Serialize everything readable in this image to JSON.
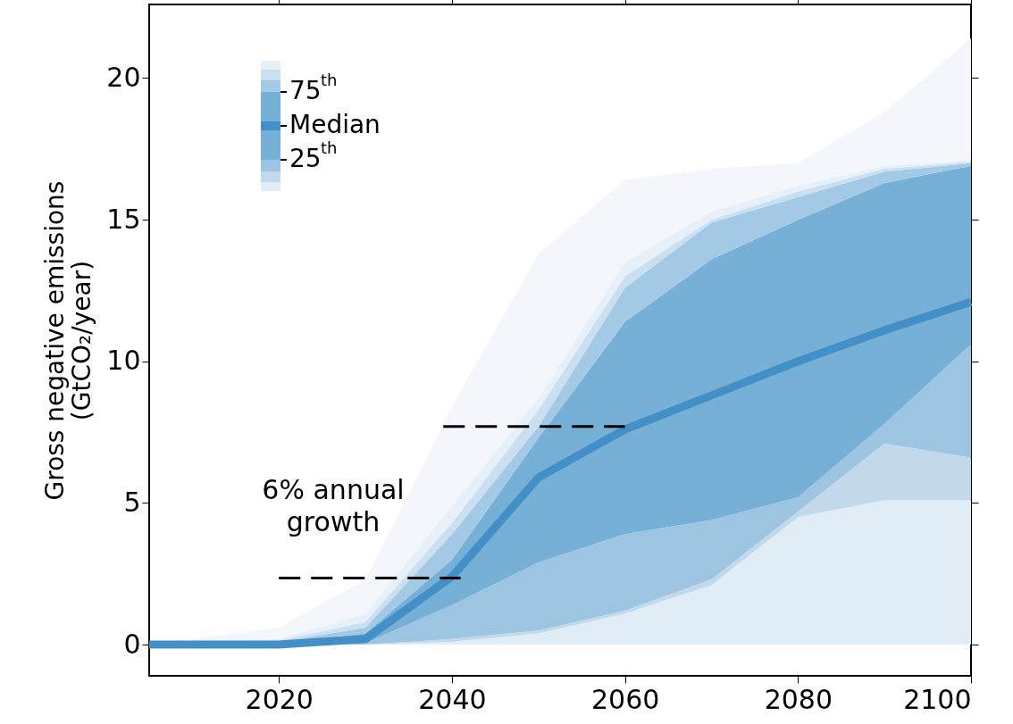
{
  "chart_data": {
    "type": "area",
    "stacked": true,
    "ylabel": "Gross negative emissions\n(GtCO₂/year)",
    "x": [
      2005,
      2020,
      2030,
      2040,
      2050,
      2060,
      2070,
      2080,
      2090,
      2100
    ],
    "xlim": [
      2005,
      2100
    ],
    "xticks": [
      2020,
      2040,
      2060,
      2080,
      2100
    ],
    "ylim": [
      -1.1,
      22.6
    ],
    "yticks": [
      0,
      5,
      10,
      15,
      20
    ],
    "grid": false,
    "legend": "top left",
    "series": [
      {
        "color": "#e0ecf6",
        "values": [
          0,
          0,
          0,
          0.1,
          0.4,
          1.1,
          2.1,
          4.5,
          5.1,
          5.1
        ]
      },
      {
        "color": "#c2d9ec",
        "values": [
          0,
          0,
          0,
          0.1,
          0.1,
          0.1,
          0.2,
          0.2,
          2.0,
          1.5
        ]
      },
      {
        "color": "#9dc5e2",
        "values": [
          0,
          0,
          0.05,
          1.2,
          2.4,
          2.7,
          2.1,
          0.5,
          0.7,
          4.0
        ]
      },
      {
        "color": "#76b0d6",
        "values": [
          0,
          0.05,
          0.35,
          1.6,
          4.4,
          7.5,
          9.2,
          9.8,
          8.5,
          6.3
        ]
      },
      {
        "color": "#a3c9e5",
        "values": [
          0,
          0.05,
          0.2,
          0.9,
          0.4,
          1.2,
          1.3,
          0.8,
          0.4,
          0.1
        ]
      },
      {
        "color": "#cadff0",
        "values": [
          0,
          0.05,
          0.2,
          0.4,
          0.6,
          0.4,
          0.1,
          0.2,
          0.1,
          0.05
        ]
      },
      {
        "color": "#e7f0f8",
        "values": [
          0,
          0.05,
          0.3,
          0.6,
          0.4,
          0.5,
          0.3,
          0.2,
          0.1,
          0.05
        ]
      },
      {
        "color": "#f3f7fb",
        "values": [
          0,
          0.4,
          1.2,
          3.5,
          5.1,
          2.9,
          1.5,
          0.8,
          1.9,
          4.3
        ]
      },
      {
        "type": "line",
        "name": "Median",
        "color": "#4390c8",
        "values": [
          0,
          0,
          0.2,
          2.4,
          5.9,
          7.6,
          8.8,
          10.0,
          11.1,
          12.1
        ]
      },
      {
        "type": "line",
        "color": "#000000",
        "line_style": "dashed",
        "x": [
          2020,
          2041
        ],
        "values": [
          2.35,
          2.35
        ]
      },
      {
        "type": "line",
        "color": "#000000",
        "line_style": "dashed",
        "x": [
          2039,
          2060
        ],
        "values": [
          7.7,
          7.7
        ]
      }
    ],
    "annotations": [
      "6% annual\ngrowth",
      "75$^{th}$",
      "25$^{th}$"
    ]
  }
}
